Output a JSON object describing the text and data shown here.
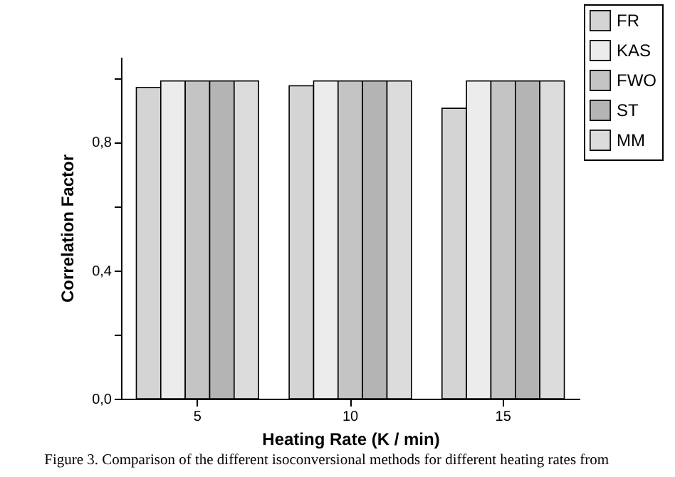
{
  "chart_data": {
    "type": "bar",
    "xlabel": "Heating Rate (K / min)",
    "ylabel": "Correlation Factor",
    "categories": [
      "5",
      "10",
      "15"
    ],
    "series": [
      {
        "name": "FR",
        "color": "#d4d4d4",
        "values": [
          0.97,
          0.975,
          0.905
        ]
      },
      {
        "name": "KAS",
        "color": "#ececec",
        "values": [
          0.99,
          0.99,
          0.99
        ]
      },
      {
        "name": "FWO",
        "color": "#c4c4c4",
        "values": [
          0.99,
          0.99,
          0.99
        ]
      },
      {
        "name": "ST",
        "color": "#b4b4b4",
        "values": [
          0.99,
          0.99,
          0.99
        ]
      },
      {
        "name": "MM",
        "color": "#dcdcdc",
        "values": [
          0.99,
          0.99,
          0.99
        ]
      }
    ],
    "ylim": [
      0,
      1.065
    ],
    "yticks": [
      {
        "value": 0,
        "label": "0,0"
      },
      {
        "value": 0.2,
        "label": null
      },
      {
        "value": 0.4,
        "label": "0,4"
      },
      {
        "value": 0.6,
        "label": null
      },
      {
        "value": 0.8,
        "label": "0,8"
      },
      {
        "value": 1.0,
        "label": null
      }
    ],
    "grid": false,
    "legend": "top right",
    "annotations": [
      "Figure 3. Comparison of the different isoconversional methods for different heating rates from"
    ]
  }
}
